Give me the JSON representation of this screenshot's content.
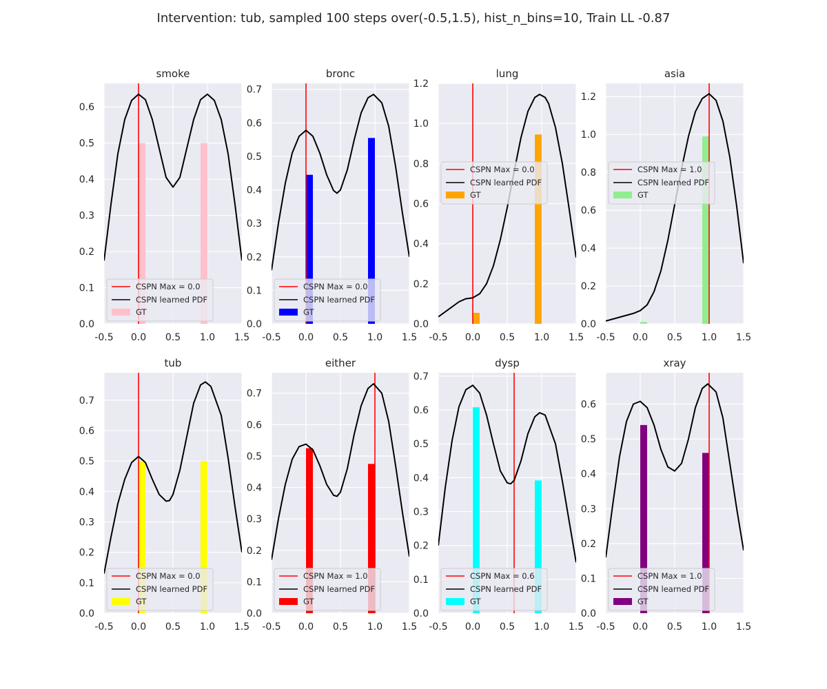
{
  "figure": {
    "suptitle": "Intervention: tub, sampled 100 steps over(-0.5,1.5), hist_n_bins=10, Train LL -0.87"
  },
  "legend_labels": {
    "max_prefix": "CSPN Max = ",
    "pdf": "CSPN learned PDF",
    "gt": "GT"
  },
  "colors": {
    "axes_bg": "#eaeaf2",
    "grid": "#ffffff",
    "max_line": "#ff0000",
    "pdf_line": "#000000"
  },
  "chart_data": [
    {
      "type": "bar",
      "title": "smoke",
      "color": "#ffc0cb",
      "xlim": [
        -0.5,
        1.5
      ],
      "ylim": [
        0,
        0.665
      ],
      "xticks": [
        -0.5,
        0.0,
        0.5,
        1.0,
        1.5
      ],
      "yticks": [
        0.0,
        0.1,
        0.2,
        0.3,
        0.4,
        0.5,
        0.6
      ],
      "ydecimals": 1,
      "bars": [
        {
          "x": 0.05,
          "value": 0.5
        },
        {
          "x": 0.95,
          "value": 0.5
        }
      ],
      "max_value": 0.0,
      "max_label": "0.0",
      "legend_loc": "lower left",
      "pdf": [
        [
          -0.5,
          0.175
        ],
        [
          -0.4,
          0.33
        ],
        [
          -0.3,
          0.47
        ],
        [
          -0.2,
          0.565
        ],
        [
          -0.1,
          0.618
        ],
        [
          0.0,
          0.635
        ],
        [
          0.1,
          0.62
        ],
        [
          0.2,
          0.565
        ],
        [
          0.3,
          0.485
        ],
        [
          0.4,
          0.405
        ],
        [
          0.5,
          0.378
        ],
        [
          0.6,
          0.405
        ],
        [
          0.7,
          0.485
        ],
        [
          0.8,
          0.565
        ],
        [
          0.9,
          0.62
        ],
        [
          1.0,
          0.635
        ],
        [
          1.1,
          0.618
        ],
        [
          1.2,
          0.565
        ],
        [
          1.3,
          0.47
        ],
        [
          1.4,
          0.33
        ],
        [
          1.5,
          0.175
        ]
      ]
    },
    {
      "type": "bar",
      "title": "bronc",
      "color": "#0000ff",
      "xlim": [
        -0.5,
        1.5
      ],
      "ylim": [
        0,
        0.718
      ],
      "xticks": [
        -0.5,
        0.0,
        0.5,
        1.0,
        1.5
      ],
      "yticks": [
        0.0,
        0.1,
        0.2,
        0.3,
        0.4,
        0.5,
        0.6,
        0.7
      ],
      "ydecimals": 1,
      "bars": [
        {
          "x": 0.05,
          "value": 0.445
        },
        {
          "x": 0.95,
          "value": 0.555
        }
      ],
      "max_value": 0.0,
      "max_label": "0.0",
      "legend_loc": "lower left",
      "pdf": [
        [
          -0.5,
          0.16
        ],
        [
          -0.4,
          0.3
        ],
        [
          -0.3,
          0.42
        ],
        [
          -0.2,
          0.51
        ],
        [
          -0.1,
          0.56
        ],
        [
          0.0,
          0.578
        ],
        [
          0.1,
          0.56
        ],
        [
          0.2,
          0.51
        ],
        [
          0.3,
          0.445
        ],
        [
          0.4,
          0.398
        ],
        [
          0.45,
          0.39
        ],
        [
          0.5,
          0.4
        ],
        [
          0.6,
          0.46
        ],
        [
          0.7,
          0.55
        ],
        [
          0.8,
          0.63
        ],
        [
          0.9,
          0.675
        ],
        [
          0.98,
          0.685
        ],
        [
          1.1,
          0.66
        ],
        [
          1.2,
          0.59
        ],
        [
          1.3,
          0.47
        ],
        [
          1.4,
          0.33
        ],
        [
          1.5,
          0.2
        ]
      ]
    },
    {
      "type": "bar",
      "title": "lung",
      "color": "#ffa500",
      "xlim": [
        -0.5,
        1.5
      ],
      "ylim": [
        0,
        1.2
      ],
      "xticks": [
        -0.5,
        0.0,
        0.5,
        1.0,
        1.5
      ],
      "yticks": [
        0.0,
        0.2,
        0.4,
        0.6,
        0.8,
        1.0,
        1.2
      ],
      "ydecimals": 1,
      "bars": [
        {
          "x": 0.05,
          "value": 0.055
        },
        {
          "x": 0.95,
          "value": 0.945
        }
      ],
      "max_value": 0.0,
      "max_label": "0.0",
      "legend_loc": "center left",
      "pdf": [
        [
          -0.5,
          0.035
        ],
        [
          -0.4,
          0.06
        ],
        [
          -0.3,
          0.085
        ],
        [
          -0.2,
          0.11
        ],
        [
          -0.1,
          0.125
        ],
        [
          0.0,
          0.13
        ],
        [
          0.1,
          0.15
        ],
        [
          0.2,
          0.2
        ],
        [
          0.3,
          0.29
        ],
        [
          0.4,
          0.42
        ],
        [
          0.5,
          0.58
        ],
        [
          0.6,
          0.76
        ],
        [
          0.7,
          0.93
        ],
        [
          0.8,
          1.06
        ],
        [
          0.9,
          1.13
        ],
        [
          0.97,
          1.145
        ],
        [
          1.05,
          1.13
        ],
        [
          1.1,
          1.1
        ],
        [
          1.2,
          0.98
        ],
        [
          1.3,
          0.8
        ],
        [
          1.4,
          0.57
        ],
        [
          1.5,
          0.33
        ]
      ]
    },
    {
      "type": "bar",
      "title": "asia",
      "color": "#90ee90",
      "xlim": [
        -0.5,
        1.5
      ],
      "ylim": [
        0,
        1.27
      ],
      "xticks": [
        -0.5,
        0.0,
        0.5,
        1.0,
        1.5
      ],
      "yticks": [
        0.0,
        0.2,
        0.4,
        0.6,
        0.8,
        1.0,
        1.2
      ],
      "ydecimals": 1,
      "bars": [
        {
          "x": 0.05,
          "value": 0.01
        },
        {
          "x": 0.95,
          "value": 0.99
        }
      ],
      "max_value": 1.0,
      "max_label": "1.0",
      "legend_loc": "center left",
      "pdf": [
        [
          -0.5,
          0.015
        ],
        [
          -0.4,
          0.025
        ],
        [
          -0.3,
          0.035
        ],
        [
          -0.2,
          0.045
        ],
        [
          -0.1,
          0.055
        ],
        [
          0.0,
          0.07
        ],
        [
          0.1,
          0.1
        ],
        [
          0.2,
          0.17
        ],
        [
          0.3,
          0.28
        ],
        [
          0.4,
          0.44
        ],
        [
          0.5,
          0.63
        ],
        [
          0.6,
          0.82
        ],
        [
          0.7,
          0.99
        ],
        [
          0.8,
          1.12
        ],
        [
          0.9,
          1.19
        ],
        [
          1.0,
          1.215
        ],
        [
          1.1,
          1.18
        ],
        [
          1.2,
          1.07
        ],
        [
          1.3,
          0.88
        ],
        [
          1.4,
          0.62
        ],
        [
          1.5,
          0.32
        ]
      ]
    },
    {
      "type": "bar",
      "title": "tub",
      "color": "#ffff00",
      "xlim": [
        -0.5,
        1.5
      ],
      "ylim": [
        0,
        0.79
      ],
      "xticks": [
        -0.5,
        0.0,
        0.5,
        1.0,
        1.5
      ],
      "yticks": [
        0.0,
        0.1,
        0.2,
        0.3,
        0.4,
        0.5,
        0.6,
        0.7
      ],
      "ydecimals": 1,
      "bars": [
        {
          "x": 0.05,
          "value": 0.5
        },
        {
          "x": 0.95,
          "value": 0.5
        }
      ],
      "max_value": 0.0,
      "max_label": "0.0",
      "legend_loc": "lower left",
      "pdf": [
        [
          -0.5,
          0.13
        ],
        [
          -0.4,
          0.25
        ],
        [
          -0.3,
          0.36
        ],
        [
          -0.2,
          0.44
        ],
        [
          -0.1,
          0.495
        ],
        [
          0.0,
          0.515
        ],
        [
          0.1,
          0.495
        ],
        [
          0.2,
          0.44
        ],
        [
          0.3,
          0.39
        ],
        [
          0.4,
          0.368
        ],
        [
          0.45,
          0.37
        ],
        [
          0.5,
          0.39
        ],
        [
          0.6,
          0.47
        ],
        [
          0.7,
          0.58
        ],
        [
          0.8,
          0.69
        ],
        [
          0.9,
          0.75
        ],
        [
          0.97,
          0.76
        ],
        [
          1.05,
          0.745
        ],
        [
          1.2,
          0.65
        ],
        [
          1.3,
          0.51
        ],
        [
          1.4,
          0.35
        ],
        [
          1.5,
          0.2
        ]
      ]
    },
    {
      "type": "bar",
      "title": "either",
      "color": "#ff0000",
      "xlim": [
        -0.5,
        1.5
      ],
      "ylim": [
        0,
        0.765
      ],
      "xticks": [
        -0.5,
        0.0,
        0.5,
        1.0,
        1.5
      ],
      "yticks": [
        0.0,
        0.1,
        0.2,
        0.3,
        0.4,
        0.5,
        0.6,
        0.7
      ],
      "ydecimals": 1,
      "bars": [
        {
          "x": 0.05,
          "value": 0.525
        },
        {
          "x": 0.95,
          "value": 0.475
        }
      ],
      "max_value": 1.0,
      "max_label": "1.0",
      "legend_loc": "lower left",
      "pdf": [
        [
          -0.5,
          0.17
        ],
        [
          -0.4,
          0.3
        ],
        [
          -0.3,
          0.41
        ],
        [
          -0.2,
          0.49
        ],
        [
          -0.1,
          0.53
        ],
        [
          0.0,
          0.538
        ],
        [
          0.1,
          0.52
        ],
        [
          0.2,
          0.47
        ],
        [
          0.3,
          0.41
        ],
        [
          0.4,
          0.375
        ],
        [
          0.45,
          0.372
        ],
        [
          0.5,
          0.385
        ],
        [
          0.6,
          0.46
        ],
        [
          0.7,
          0.57
        ],
        [
          0.8,
          0.66
        ],
        [
          0.9,
          0.715
        ],
        [
          0.98,
          0.73
        ],
        [
          1.1,
          0.7
        ],
        [
          1.2,
          0.61
        ],
        [
          1.3,
          0.47
        ],
        [
          1.4,
          0.32
        ],
        [
          1.5,
          0.18
        ]
      ]
    },
    {
      "type": "bar",
      "title": "dysp",
      "color": "#00ffff",
      "xlim": [
        -0.5,
        1.5
      ],
      "ylim": [
        0,
        0.71
      ],
      "xticks": [
        -0.5,
        0.0,
        0.5,
        1.0,
        1.5
      ],
      "yticks": [
        0.0,
        0.1,
        0.2,
        0.3,
        0.4,
        0.5,
        0.6,
        0.7
      ],
      "ydecimals": 1,
      "bars": [
        {
          "x": 0.05,
          "value": 0.608
        },
        {
          "x": 0.95,
          "value": 0.392
        }
      ],
      "max_value": 0.6,
      "max_label": "0.6",
      "legend_loc": "lower left",
      "pdf": [
        [
          -0.5,
          0.2
        ],
        [
          -0.4,
          0.37
        ],
        [
          -0.3,
          0.51
        ],
        [
          -0.2,
          0.61
        ],
        [
          -0.1,
          0.66
        ],
        [
          0.0,
          0.673
        ],
        [
          0.1,
          0.65
        ],
        [
          0.2,
          0.585
        ],
        [
          0.3,
          0.5
        ],
        [
          0.4,
          0.42
        ],
        [
          0.5,
          0.385
        ],
        [
          0.55,
          0.382
        ],
        [
          0.6,
          0.392
        ],
        [
          0.7,
          0.45
        ],
        [
          0.8,
          0.53
        ],
        [
          0.9,
          0.58
        ],
        [
          0.97,
          0.592
        ],
        [
          1.05,
          0.585
        ],
        [
          1.2,
          0.5
        ],
        [
          1.3,
          0.39
        ],
        [
          1.4,
          0.27
        ],
        [
          1.5,
          0.15
        ]
      ]
    },
    {
      "type": "bar",
      "title": "xray",
      "color": "#800080",
      "xlim": [
        -0.5,
        1.5
      ],
      "ylim": [
        0,
        0.69
      ],
      "xticks": [
        -0.5,
        0.0,
        0.5,
        1.0,
        1.5
      ],
      "yticks": [
        0.0,
        0.1,
        0.2,
        0.3,
        0.4,
        0.5,
        0.6
      ],
      "ydecimals": 1,
      "bars": [
        {
          "x": 0.05,
          "value": 0.54
        },
        {
          "x": 0.95,
          "value": 0.46
        }
      ],
      "max_value": 1.0,
      "max_label": "1.0",
      "legend_loc": "lower left",
      "pdf": [
        [
          -0.5,
          0.16
        ],
        [
          -0.4,
          0.31
        ],
        [
          -0.3,
          0.45
        ],
        [
          -0.2,
          0.55
        ],
        [
          -0.1,
          0.6
        ],
        [
          0.0,
          0.608
        ],
        [
          0.1,
          0.59
        ],
        [
          0.2,
          0.54
        ],
        [
          0.3,
          0.47
        ],
        [
          0.4,
          0.42
        ],
        [
          0.5,
          0.408
        ],
        [
          0.6,
          0.43
        ],
        [
          0.7,
          0.5
        ],
        [
          0.8,
          0.59
        ],
        [
          0.9,
          0.645
        ],
        [
          0.98,
          0.658
        ],
        [
          1.1,
          0.635
        ],
        [
          1.2,
          0.56
        ],
        [
          1.3,
          0.43
        ],
        [
          1.4,
          0.3
        ],
        [
          1.5,
          0.18
        ]
      ]
    }
  ]
}
